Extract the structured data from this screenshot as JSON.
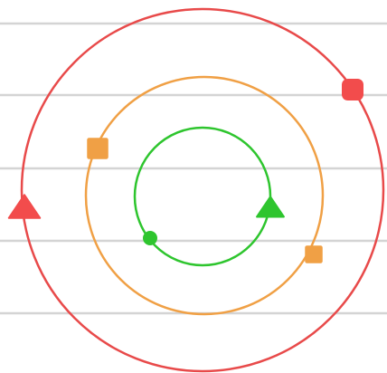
{
  "colors": {
    "background": "#ffffff",
    "guide_line": "#d4d4d4",
    "outer": "#e84a4a",
    "middle": "#f0a045",
    "inner": "#2ec52e"
  },
  "rings": [
    {
      "id": "outer",
      "color": "#e84a4a",
      "markers": [
        {
          "shape": "circle-marker",
          "color": "#f24c4c"
        },
        {
          "shape": "triangle-marker",
          "color": "#f24c4c"
        }
      ]
    },
    {
      "id": "middle",
      "color": "#f0a045",
      "markers": [
        {
          "shape": "square-marker",
          "color": "#f0a045"
        },
        {
          "shape": "square-marker",
          "color": "#f0a045"
        }
      ]
    },
    {
      "id": "inner",
      "color": "#2ec52e",
      "markers": [
        {
          "shape": "triangle-marker",
          "color": "#2ec52e"
        },
        {
          "shape": "circle-marker",
          "color": "#2ec52e"
        }
      ]
    }
  ],
  "guide_line_count": 5
}
